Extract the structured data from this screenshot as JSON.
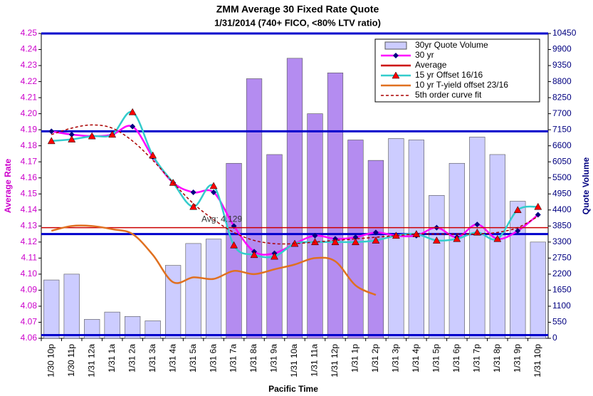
{
  "chart_data": {
    "type": "combo",
    "title": "ZMM Average 30 Fixed Rate Quote",
    "subtitle": "1/31/2014  (740+ FICO, <80% LTV ratio)",
    "x_label": "Pacific Time",
    "y_label": "Average Rate",
    "y2_label": "Quote Volume",
    "annotation": "Avg: 4.129",
    "categories": [
      "1/30 10p",
      "1/30 11p",
      "1/31 12a",
      "1/31 1a",
      "1/31 2a",
      "1/31 3a",
      "1/31 4a",
      "1/31 5a",
      "1/31 6a",
      "1/31 7a",
      "1/31 8a",
      "1/31 9a",
      "1/31 10a",
      "1/31 11a",
      "1/31 12p",
      "1/31 1p",
      "1/31 2p",
      "1/31 3p",
      "1/31 4p",
      "1/31 5p",
      "1/31 6p",
      "1/31 7p",
      "1/31 8p",
      "1/31 9p",
      "1/31 10p"
    ],
    "ylim": [
      4.06,
      4.25
    ],
    "yticks": [
      4.06,
      4.07,
      4.08,
      4.09,
      {
        "value": 4.1,
        "label": "4.10"
      },
      4.11,
      4.12,
      4.13,
      4.14,
      4.15,
      4.16,
      4.17,
      4.18,
      4.19,
      {
        "value": 4.2,
        "label": "4.20"
      },
      4.21,
      4.22,
      4.23,
      4.24,
      4.25
    ],
    "y2lim": [
      0,
      10450
    ],
    "y2ticks": [
      0,
      550,
      1100,
      1650,
      2200,
      2750,
      3300,
      3850,
      4400,
      4950,
      5500,
      6050,
      6600,
      7150,
      7700,
      8250,
      8800,
      9350,
      9900,
      10450
    ],
    "hlines": [
      4.189,
      4.125,
      4.062
    ],
    "hline_color": "#0000cc",
    "legend": "upper right",
    "series": [
      {
        "name": "30yr Quote Volume",
        "type": "bar",
        "axis": "y2",
        "color": "#ccccff",
        "colors": [
          "#ccccff",
          "#ccccff",
          "#ccccff",
          "#ccccff",
          "#ccccff",
          "#ccccff",
          "#ccccff",
          "#ccccff",
          "#ccccff",
          "#b48cf0",
          "#b48cf0",
          "#b48cf0",
          "#b48cf0",
          "#b48cf0",
          "#b48cf0",
          "#b48cf0",
          "#b48cf0",
          "#ccccff",
          "#ccccff",
          "#ccccff",
          "#ccccff",
          "#ccccff",
          "#ccccff",
          "#ccccff",
          "#ccccff"
        ],
        "values": [
          2000,
          2200,
          650,
          900,
          750,
          600,
          2500,
          3250,
          3400,
          6000,
          8900,
          6300,
          9600,
          7700,
          9100,
          6800,
          6100,
          6850,
          6800,
          4900,
          6000,
          6900,
          6300,
          4700,
          3300
        ]
      },
      {
        "name": "30 yr",
        "type": "line",
        "color": "#ff00ff",
        "marker": "diamond",
        "marker_color": "#000080",
        "values": [
          4.189,
          4.187,
          4.186,
          4.187,
          4.192,
          4.173,
          4.157,
          4.151,
          4.151,
          4.13,
          4.114,
          4.113,
          4.119,
          4.124,
          4.122,
          4.123,
          4.126,
          4.124,
          4.124,
          4.129,
          4.123,
          4.131,
          4.122,
          4.127,
          4.137
        ]
      },
      {
        "name": "Average",
        "type": "hline",
        "color": "#cc0000",
        "value": 4.129
      },
      {
        "name": "15 yr Offset  16/16",
        "type": "line",
        "color": "#33cccc",
        "marker": "triangle",
        "marker_color": "#ff0000",
        "values": [
          4.183,
          4.184,
          4.186,
          4.187,
          4.201,
          4.174,
          4.157,
          4.142,
          4.155,
          4.118,
          4.112,
          4.111,
          4.119,
          4.12,
          4.12,
          4.12,
          4.121,
          4.124,
          4.125,
          4.121,
          4.122,
          4.126,
          4.122,
          4.14,
          4.142
        ]
      },
      {
        "name": "10 yr T-yield offset 23/16",
        "type": "line",
        "color": "#e07020",
        "values": [
          4.127,
          4.13,
          4.13,
          4.128,
          4.125,
          4.112,
          4.095,
          4.098,
          4.097,
          4.102,
          4.1,
          4.103,
          4.106,
          4.11,
          4.108,
          4.093,
          4.087,
          null,
          null,
          null,
          null,
          null,
          null,
          null,
          null
        ]
      },
      {
        "name": "5th order curve fit",
        "type": "line",
        "color": "#aa0000",
        "dash": true,
        "values": [
          4.187,
          4.191,
          4.193,
          4.191,
          4.183,
          4.171,
          4.157,
          4.144,
          4.134,
          4.126,
          4.121,
          4.119,
          4.119,
          4.12,
          4.121,
          4.122,
          4.123,
          4.124,
          4.125,
          4.125,
          4.125,
          4.125,
          4.126,
          4.129,
          4.136
        ]
      }
    ]
  }
}
